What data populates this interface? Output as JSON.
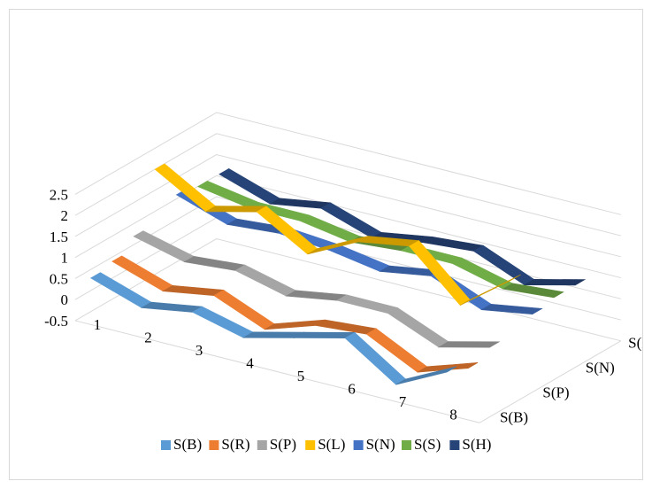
{
  "chart_data": {
    "type": "line",
    "title": "",
    "xlabel": "",
    "ylabel": "",
    "categories": [
      "1",
      "2",
      "3",
      "4",
      "5",
      "6",
      "7",
      "8"
    ],
    "y_ticks": [
      "2.5",
      "2",
      "1.5",
      "1",
      "0.5",
      "0",
      "-0.5"
    ],
    "ylim": [
      -0.5,
      2.5
    ],
    "depth_ticks": [
      "S(B)",
      "S(P)",
      "S(N)",
      "S(H)"
    ],
    "legend_position": "bottom",
    "series": [
      {
        "name": "S(B)",
        "color": "#5b9bd5",
        "values": [
          0.7,
          0.3,
          0.5,
          0.2,
          0.5,
          0.8,
          0.0,
          0.6
        ]
      },
      {
        "name": "S(R)",
        "color": "#ed7d31",
        "values": [
          0.8,
          0.4,
          0.6,
          0.1,
          0.5,
          0.6,
          0.0,
          0.4
        ]
      },
      {
        "name": "S(P)",
        "color": "#a5a5a5",
        "values": [
          1.1,
          0.8,
          0.9,
          0.6,
          0.8,
          0.8,
          0.3,
          0.6
        ]
      },
      {
        "name": "S(L)",
        "color": "#ffc000",
        "values": [
          2.4,
          1.7,
          2.0,
          1.3,
          1.9,
          2.1,
          1.0,
          1.9
        ]
      },
      {
        "name": "S(N)",
        "color": "#4472c4",
        "values": [
          1.5,
          1.1,
          1.2,
          1.1,
          0.9,
          1.1,
          0.6,
          0.8
        ]
      },
      {
        "name": "S(S)",
        "color": "#70ad47",
        "values": [
          1.4,
          1.2,
          1.2,
          1.0,
          1.1,
          1.1,
          0.8,
          0.9
        ]
      },
      {
        "name": "S(H)",
        "color": "#264478",
        "values": [
          1.4,
          1.0,
          1.2,
          0.8,
          1.0,
          1.1,
          0.6,
          0.9
        ]
      }
    ]
  }
}
